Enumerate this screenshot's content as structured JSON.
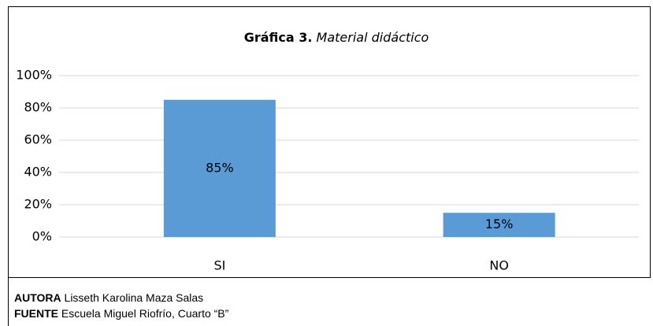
{
  "chart_data": {
    "type": "bar",
    "title_label": "Gráfica 3.",
    "title": "Material didáctico",
    "categories": [
      "SI",
      "NO"
    ],
    "values": [
      85,
      15
    ],
    "value_labels": [
      "85%",
      "15%"
    ],
    "color": "#5b9bd5",
    "ylim": [
      0,
      100
    ],
    "yticks": [
      {
        "value": 0,
        "label": "0%"
      },
      {
        "value": 20,
        "label": "20%"
      },
      {
        "value": 40,
        "label": "40%"
      },
      {
        "value": 60,
        "label": "60%"
      },
      {
        "value": 80,
        "label": "80%"
      },
      {
        "value": 100,
        "label": "100%"
      }
    ],
    "grid": true
  },
  "footer": {
    "author_label": "AUTORA",
    "author": "Lisseth Karolina Maza Salas",
    "source_label": "FUENTE",
    "source": "Escuela Miguel Riofrío, Cuarto “B”"
  }
}
